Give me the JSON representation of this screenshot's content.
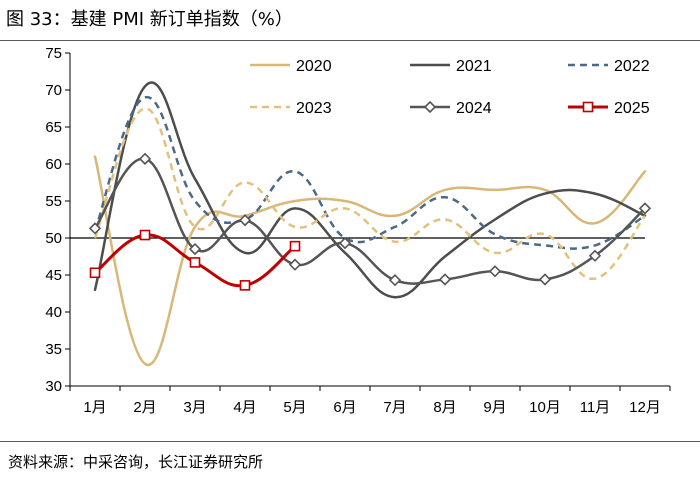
{
  "header": {
    "title": "图 33：基建 PMI 新订单指数（%）"
  },
  "footer": {
    "source": "资料来源：中采咨询，长江证券研究所"
  },
  "chart_data": {
    "type": "line",
    "title": "基建 PMI 新订单指数（%）",
    "xlabel": "",
    "ylabel": "",
    "categories": [
      "1月",
      "2月",
      "3月",
      "4月",
      "5月",
      "6月",
      "7月",
      "8月",
      "9月",
      "10月",
      "11月",
      "12月"
    ],
    "ylim": [
      30,
      75
    ],
    "yticks": [
      30,
      35,
      40,
      45,
      50,
      55,
      60,
      65,
      70,
      75
    ],
    "yticks_labels": [
      "30",
      "35",
      "40",
      "45",
      "50",
      "55",
      "60",
      "65",
      "70",
      "75"
    ],
    "reference_line": 50,
    "legend_position": "top-right",
    "series": [
      {
        "name": "2020",
        "color": "#d9b778",
        "dash": "solid",
        "marker": "none",
        "width": 2.5,
        "values": [
          61,
          33,
          51.5,
          53,
          55,
          55,
          53,
          56.5,
          56.5,
          56.5,
          52,
          59
        ]
      },
      {
        "name": "2021",
        "color": "#4d4d4d",
        "dash": "solid",
        "marker": "none",
        "width": 2.5,
        "values": [
          43,
          70.5,
          58,
          48,
          54,
          48,
          42,
          47.5,
          52.5,
          56,
          56,
          53
        ]
      },
      {
        "name": "2022",
        "color": "#4a6a87",
        "dash": "dashed",
        "marker": "none",
        "width": 2.5,
        "values": [
          51,
          69,
          55,
          52.5,
          59,
          50,
          51.5,
          55.5,
          50.5,
          49,
          49,
          53
        ]
      },
      {
        "name": "2023",
        "color": "#e3c07e",
        "dash": "dashed",
        "marker": "none",
        "width": 2.5,
        "values": [
          50,
          67.5,
          51.5,
          57.5,
          51.5,
          54,
          49.5,
          52.5,
          48,
          50.5,
          44.5,
          53
        ]
      },
      {
        "name": "2024",
        "color": "#555555",
        "dash": "solid",
        "marker": "diamond",
        "width": 2.5,
        "values": [
          51.3,
          60.7,
          48.5,
          52.4,
          46.4,
          49.3,
          44.3,
          44.4,
          45.5,
          44.4,
          47.6,
          54
        ]
      },
      {
        "name": "2025",
        "color": "#c00000",
        "dash": "solid",
        "marker": "square",
        "width": 3,
        "values": [
          45.3,
          50.4,
          46.7,
          43.6,
          48.9,
          null,
          null,
          null,
          null,
          null,
          null,
          null
        ]
      }
    ]
  }
}
